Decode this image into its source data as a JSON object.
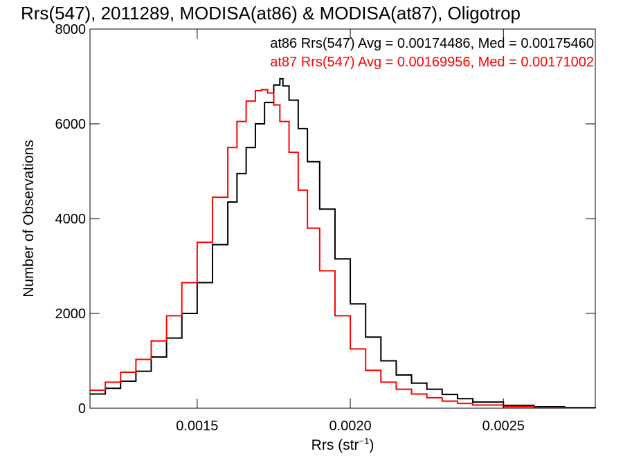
{
  "chart_data": {
    "type": "line",
    "title": "Rrs(547), 2011289, MODISA(at86) & MODISA(at87), Oligotrop",
    "xlabel_main": "Rrs (str",
    "xlabel_sup": "−1",
    "xlabel_close": ")",
    "ylabel": "Number of Observations",
    "xlim": [
      0.00115,
      0.0028
    ],
    "ylim": [
      0,
      8000
    ],
    "xticks": [
      0.0015,
      0.002,
      0.0025
    ],
    "xtick_labels": [
      "0.0015",
      "0.0020",
      "0.0025"
    ],
    "yticks": [
      0,
      2000,
      4000,
      6000,
      8000
    ],
    "ytick_labels": [
      "0",
      "2000",
      "4000",
      "6000",
      "8000"
    ],
    "series": [
      {
        "name": "at86",
        "color": "#000000",
        "legend_text": "at86 Rrs(547) Avg = 0.00174486, Med = 0.00175460",
        "x": [
          0.00115,
          0.0012,
          0.00125,
          0.0013,
          0.00135,
          0.0014,
          0.00145,
          0.0015,
          0.00155,
          0.0016,
          0.00163,
          0.00166,
          0.00169,
          0.00172,
          0.00175,
          0.00177,
          0.00178,
          0.0018,
          0.00183,
          0.00186,
          0.0019,
          0.00195,
          0.002,
          0.00205,
          0.0021,
          0.00215,
          0.0022,
          0.00225,
          0.0023,
          0.00235,
          0.0024,
          0.0025,
          0.0026,
          0.0027,
          0.0028
        ],
        "y": [
          300,
          420,
          570,
          780,
          1080,
          1480,
          2000,
          2650,
          3450,
          4350,
          4950,
          5500,
          6000,
          6450,
          6820,
          6950,
          6800,
          6500,
          5900,
          5200,
          4200,
          3150,
          2200,
          1500,
          1000,
          700,
          530,
          400,
          290,
          200,
          130,
          60,
          30,
          15,
          5
        ]
      },
      {
        "name": "at87",
        "color": "#ff0000",
        "legend_text": "at87 Rrs(547) Avg = 0.00169956, Med = 0.00171002",
        "x": [
          0.00115,
          0.0012,
          0.00125,
          0.0013,
          0.00135,
          0.0014,
          0.00145,
          0.0015,
          0.00155,
          0.0016,
          0.00163,
          0.00166,
          0.00169,
          0.00171,
          0.00173,
          0.00175,
          0.00177,
          0.0018,
          0.00183,
          0.00186,
          0.0019,
          0.00195,
          0.002,
          0.00205,
          0.0021,
          0.00215,
          0.0022,
          0.00225,
          0.0023,
          0.00235,
          0.0024,
          0.0025,
          0.0026,
          0.0027,
          0.0028
        ],
        "y": [
          380,
          550,
          760,
          1030,
          1420,
          1950,
          2650,
          3500,
          4450,
          5500,
          6050,
          6480,
          6700,
          6720,
          6650,
          6400,
          6050,
          5400,
          4600,
          3800,
          2900,
          1950,
          1250,
          800,
          550,
          400,
          300,
          220,
          150,
          100,
          65,
          30,
          15,
          8,
          3
        ]
      }
    ]
  }
}
